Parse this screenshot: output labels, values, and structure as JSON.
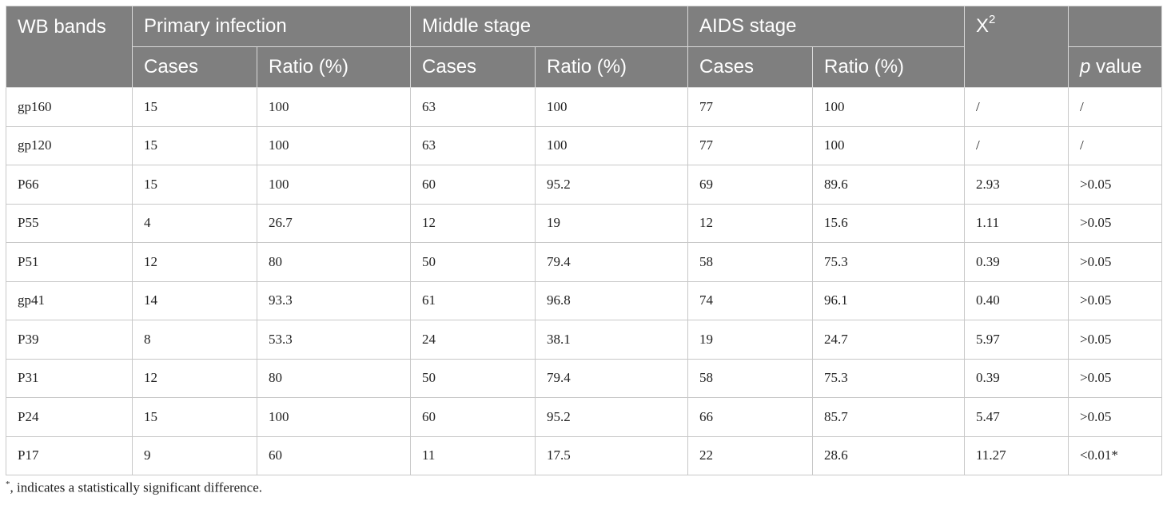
{
  "table": {
    "header": {
      "wb_bands": "WB bands",
      "groups": [
        "Primary infection",
        "Middle stage",
        "AIDS stage"
      ],
      "x2_label": "X",
      "x2_sup": "2",
      "subheaders": {
        "cases": "Cases",
        "ratio": "Ratio (%)"
      },
      "p_italic": "p",
      "p_rest": " value"
    },
    "rows": [
      {
        "band": "gp160",
        "pi_cases": "15",
        "pi_ratio": "100",
        "ms_cases": "63",
        "ms_ratio": "100",
        "aids_cases": "77",
        "aids_ratio": "100",
        "x2": "/",
        "p": "/"
      },
      {
        "band": "gp120",
        "pi_cases": "15",
        "pi_ratio": "100",
        "ms_cases": "63",
        "ms_ratio": "100",
        "aids_cases": "77",
        "aids_ratio": "100",
        "x2": "/",
        "p": "/"
      },
      {
        "band": "P66",
        "pi_cases": "15",
        "pi_ratio": "100",
        "ms_cases": "60",
        "ms_ratio": "95.2",
        "aids_cases": "69",
        "aids_ratio": "89.6",
        "x2": "2.93",
        "p": ">0.05"
      },
      {
        "band": "P55",
        "pi_cases": "4",
        "pi_ratio": "26.7",
        "ms_cases": "12",
        "ms_ratio": "19",
        "aids_cases": "12",
        "aids_ratio": "15.6",
        "x2": "1.11",
        "p": ">0.05"
      },
      {
        "band": "P51",
        "pi_cases": "12",
        "pi_ratio": "80",
        "ms_cases": "50",
        "ms_ratio": "79.4",
        "aids_cases": "58",
        "aids_ratio": "75.3",
        "x2": "0.39",
        "p": ">0.05"
      },
      {
        "band": "gp41",
        "pi_cases": "14",
        "pi_ratio": "93.3",
        "ms_cases": "61",
        "ms_ratio": "96.8",
        "aids_cases": "74",
        "aids_ratio": "96.1",
        "x2": "0.40",
        "p": ">0.05"
      },
      {
        "band": "P39",
        "pi_cases": "8",
        "pi_ratio": "53.3",
        "ms_cases": "24",
        "ms_ratio": "38.1",
        "aids_cases": "19",
        "aids_ratio": "24.7",
        "x2": "5.97",
        "p": ">0.05"
      },
      {
        "band": "P31",
        "pi_cases": "12",
        "pi_ratio": "80",
        "ms_cases": "50",
        "ms_ratio": "79.4",
        "aids_cases": "58",
        "aids_ratio": "75.3",
        "x2": "0.39",
        "p": ">0.05"
      },
      {
        "band": "P24",
        "pi_cases": "15",
        "pi_ratio": "100",
        "ms_cases": "60",
        "ms_ratio": "95.2",
        "aids_cases": "66",
        "aids_ratio": "85.7",
        "x2": "5.47",
        "p": ">0.05"
      },
      {
        "band": "P17",
        "pi_cases": "9",
        "pi_ratio": "60",
        "ms_cases": "11",
        "ms_ratio": "17.5",
        "aids_cases": "22",
        "aids_ratio": "28.6",
        "x2": "11.27",
        "p": "<0.01*"
      }
    ]
  },
  "footnote": {
    "marker": "*",
    "text": ", indicates a statistically significant difference."
  },
  "colors": {
    "header_bg": "#7f7f7f",
    "header_text": "#ffffff",
    "grid": "#c8c8c8"
  }
}
